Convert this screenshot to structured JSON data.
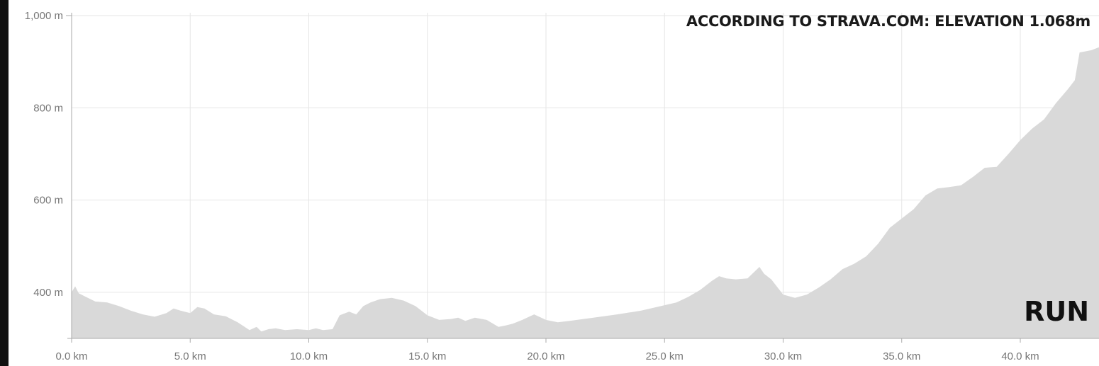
{
  "chart_data": {
    "type": "area",
    "title": "ACCORDING TO STRAVA.COM: ELEVATION 1.068m",
    "annotation": "RUN",
    "xlabel": "",
    "ylabel": "",
    "xlim": [
      0,
      43.5
    ],
    "ylim": [
      300,
      1000
    ],
    "x_ticks": [
      {
        "value": 0,
        "label": "0.0 km"
      },
      {
        "value": 5,
        "label": "5.0 km"
      },
      {
        "value": 10,
        "label": "10.0 km"
      },
      {
        "value": 15,
        "label": "15.0 km"
      },
      {
        "value": 20,
        "label": "20.0 km"
      },
      {
        "value": 25,
        "label": "25.0 km"
      },
      {
        "value": 30,
        "label": "30.0 km"
      },
      {
        "value": 35,
        "label": "35.0 km"
      },
      {
        "value": 40,
        "label": "40.0 km"
      }
    ],
    "y_ticks": [
      {
        "value": 400,
        "label": "400 m"
      },
      {
        "value": 600,
        "label": "600 m"
      },
      {
        "value": 800,
        "label": "800 m"
      },
      {
        "value": 1000,
        "label": "1,000 m"
      }
    ],
    "grid": true,
    "fill_color": "#d9d9d9",
    "grid_color": "#e6e6e6",
    "series": [
      {
        "x": [
          0,
          0.15,
          0.3,
          0.6,
          1.0,
          1.5,
          2.0,
          2.5,
          3.0,
          3.5,
          4.0,
          4.3,
          4.6,
          5.0,
          5.3,
          5.6,
          6.0,
          6.5,
          7.0,
          7.5,
          7.8,
          8.0,
          8.3,
          8.6,
          9.0,
          9.5,
          10.0,
          10.3,
          10.6,
          11.0,
          11.3,
          11.7,
          12.0,
          12.3,
          12.6,
          13.0,
          13.5,
          14.0,
          14.5,
          15.0,
          15.5,
          16.0,
          16.3,
          16.6,
          17.0,
          17.5,
          18.0,
          18.3,
          18.6,
          19.0,
          19.5,
          20.0,
          20.5,
          21.0,
          22.0,
          23.0,
          24.0,
          25.0,
          25.5,
          26.0,
          26.5,
          27.0,
          27.3,
          27.6,
          28.0,
          28.5,
          29.0,
          29.2,
          29.5,
          30.0,
          30.5,
          31.0,
          31.5,
          32.0,
          32.5,
          33.0,
          33.5,
          34.0,
          34.5,
          35.0,
          35.5,
          36.0,
          36.5,
          37.0,
          37.5,
          38.0,
          38.5,
          39.0,
          39.5,
          40.0,
          40.5,
          41.0,
          41.5,
          42.0,
          42.3,
          42.5,
          43.0,
          43.5
        ],
        "y": [
          400,
          413,
          398,
          390,
          380,
          378,
          370,
          360,
          352,
          347,
          355,
          365,
          360,
          355,
          368,
          365,
          352,
          348,
          335,
          318,
          325,
          315,
          320,
          322,
          318,
          320,
          318,
          322,
          318,
          320,
          350,
          358,
          352,
          370,
          378,
          385,
          388,
          382,
          370,
          350,
          340,
          342,
          345,
          338,
          345,
          340,
          325,
          328,
          332,
          340,
          352,
          340,
          335,
          338,
          345,
          352,
          360,
          372,
          378,
          390,
          405,
          425,
          435,
          430,
          428,
          430,
          455,
          440,
          428,
          395,
          388,
          395,
          410,
          428,
          450,
          462,
          478,
          505,
          540,
          560,
          580,
          610,
          625,
          628,
          632,
          650,
          670,
          672,
          700,
          730,
          755,
          775,
          810,
          840,
          860,
          920,
          925,
          935
        ]
      }
    ]
  }
}
